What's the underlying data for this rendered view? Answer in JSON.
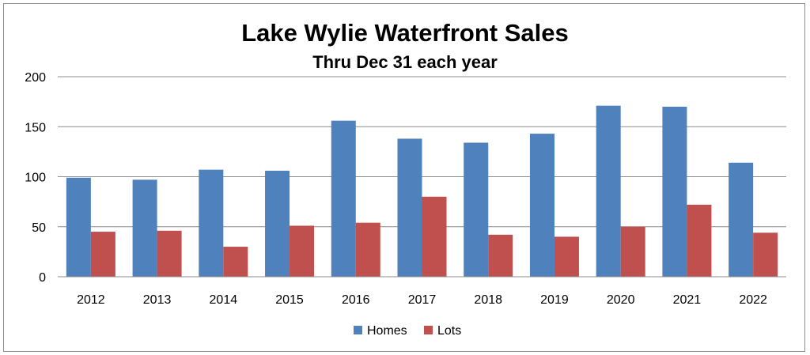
{
  "chart_data": {
    "type": "bar",
    "title": "Lake Wylie Waterfront Sales",
    "subtitle": "Thru Dec 31 each year",
    "xlabel": "",
    "ylabel": "",
    "categories": [
      "2012",
      "2013",
      "2014",
      "2015",
      "2016",
      "2017",
      "2018",
      "2019",
      "2020",
      "2021",
      "2022"
    ],
    "series": [
      {
        "name": "Homes",
        "color": "#4f81bd",
        "values": [
          99,
          97,
          107,
          106,
          156,
          138,
          134,
          143,
          171,
          170,
          114
        ]
      },
      {
        "name": "Lots",
        "color": "#c0504d",
        "values": [
          45,
          46,
          30,
          51,
          54,
          80,
          42,
          40,
          50,
          72,
          44
        ]
      }
    ],
    "ylim": [
      0,
      200
    ],
    "yticks": [
      0,
      50,
      100,
      150,
      200
    ],
    "grid": true,
    "legend": "bottom-center"
  }
}
